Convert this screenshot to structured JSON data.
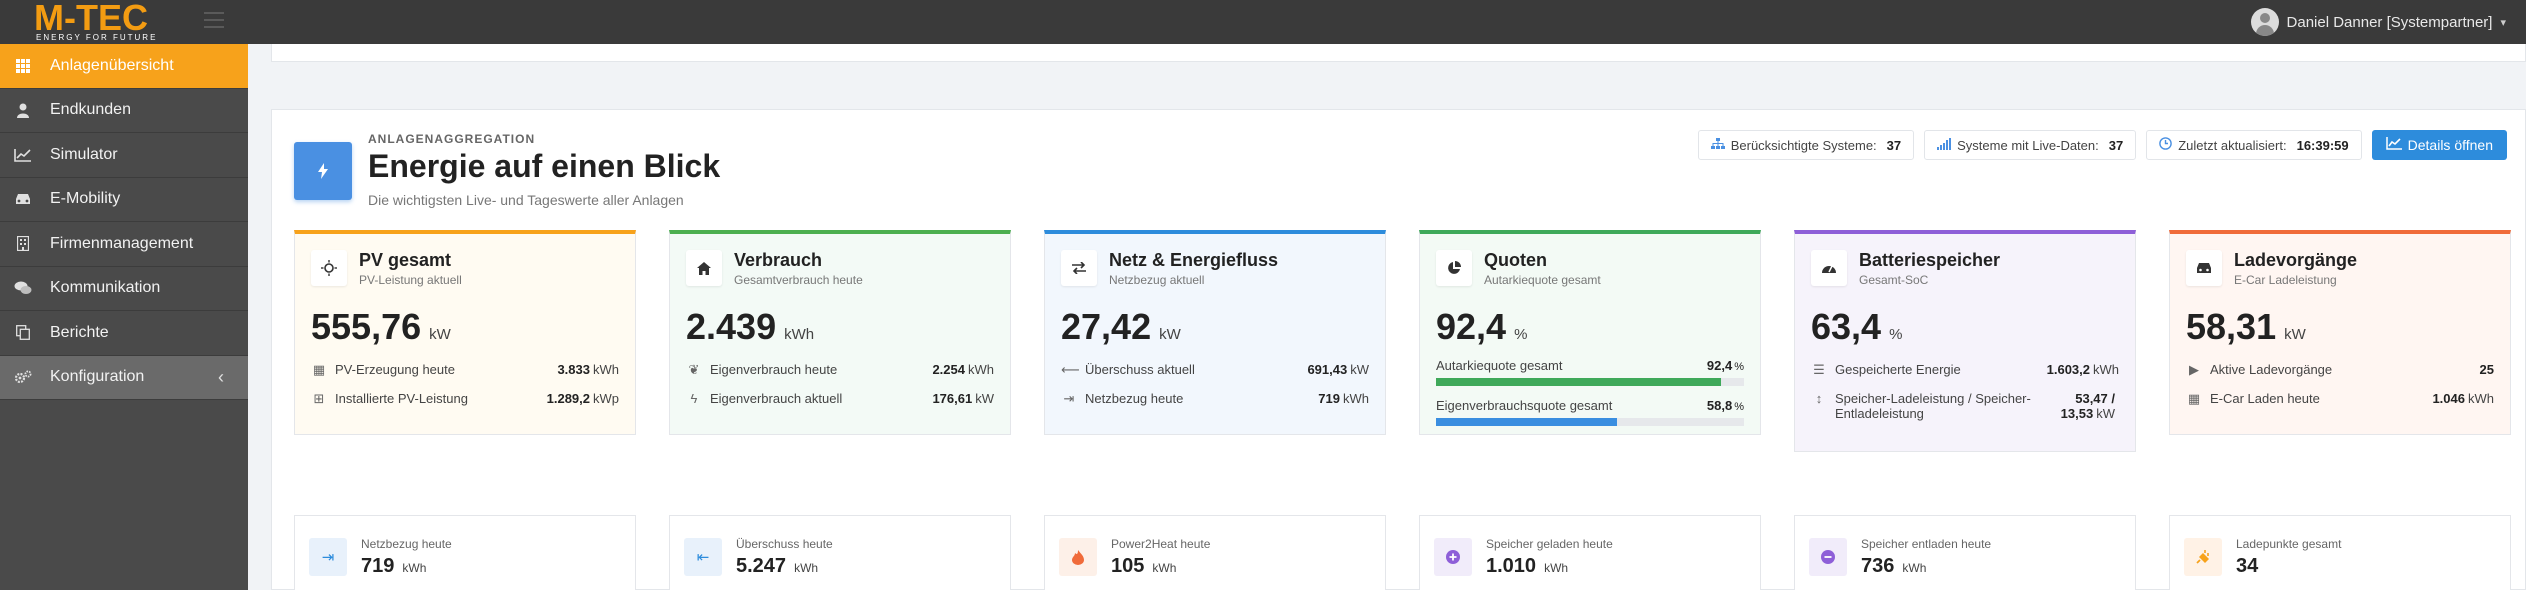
{
  "brand": {
    "name": "M-TEC",
    "tagline": "ENERGY FOR FUTURE"
  },
  "user": {
    "name": "Daniel Danner [Systempartner]"
  },
  "sidebar": {
    "items": [
      {
        "label": "Anlagenübersicht",
        "icon": "grid-icon"
      },
      {
        "label": "Endkunden",
        "icon": "user-icon"
      },
      {
        "label": "Simulator",
        "icon": "line-chart-icon"
      },
      {
        "label": "E-Mobility",
        "icon": "car-icon"
      },
      {
        "label": "Firmenmanagement",
        "icon": "building-icon"
      },
      {
        "label": "Kommunikation",
        "icon": "chat-icon"
      },
      {
        "label": "Berichte",
        "icon": "copy-icon"
      },
      {
        "label": "Konfiguration",
        "icon": "gears-icon"
      }
    ]
  },
  "header": {
    "overline": "ANLAGENAGGREGATION",
    "title": "Energie auf einen Blick",
    "subtitle": "Die wichtigsten Live- und Tageswerte aller Anlagen",
    "chips": [
      {
        "label": "Berücksichtigte Systeme:",
        "value": "37",
        "icon": "sitemap-icon"
      },
      {
        "label": "Systeme mit Live-Daten:",
        "value": "37",
        "icon": "signal-icon"
      },
      {
        "label": "Zuletzt aktualisiert:",
        "value": "16:39:59",
        "icon": "clock-icon"
      }
    ],
    "details_button": "Details öffnen"
  },
  "colors": {
    "accent": "#f7a21b",
    "pv": "#f7a21b",
    "verbrauch": "#4caf50",
    "netz": "#2d8cdc",
    "quoten": "#3fa95a",
    "batterie": "#8e5fd8",
    "laden": "#f06b3a",
    "bar_green": "#3fa95a",
    "bar_blue": "#3a8ee0"
  },
  "cards": {
    "pv": {
      "title": "PV gesamt",
      "subtitle": "PV-Leistung aktuell",
      "value": "555,76",
      "unit": "kW",
      "rows": [
        {
          "label": "PV-Erzeugung heute",
          "value": "3.833",
          "unit": "kWh"
        },
        {
          "label": "Installierte PV-Leistung",
          "value": "1.289,2",
          "unit": "kWp"
        }
      ]
    },
    "verbrauch": {
      "title": "Verbrauch",
      "subtitle": "Gesamtverbrauch heute",
      "value": "2.439",
      "unit": "kWh",
      "rows": [
        {
          "label": "Eigenverbrauch heute",
          "value": "2.254",
          "unit": "kWh"
        },
        {
          "label": "Eigenverbrauch aktuell",
          "value": "176,61",
          "unit": "kW"
        }
      ]
    },
    "netz": {
      "title": "Netz & Energiefluss",
      "subtitle": "Netzbezug aktuell",
      "value": "27,42",
      "unit": "kW",
      "rows": [
        {
          "label": "Überschuss aktuell",
          "value": "691,43",
          "unit": "kW"
        },
        {
          "label": "Netzbezug heute",
          "value": "719",
          "unit": "kWh"
        }
      ]
    },
    "quoten": {
      "title": "Quoten",
      "subtitle": "Autarkiequote gesamt",
      "value": "92,4",
      "unit": "%",
      "bars": [
        {
          "label": "Autarkiequote gesamt",
          "value": "92,4",
          "unit": "%",
          "fraction": 0.924
        },
        {
          "label": "Eigenverbrauchsquote gesamt",
          "value": "58,8",
          "unit": "%",
          "fraction": 0.588
        }
      ]
    },
    "batterie": {
      "title": "Batteriespeicher",
      "subtitle": "Gesamt-SoC",
      "value": "63,4",
      "unit": "%",
      "rows": [
        {
          "label": "Gespeicherte Energie",
          "value": "1.603,2",
          "unit": "kWh"
        },
        {
          "label": "Speicher-Ladeleistung / Speicher-Entladeleistung",
          "value": "53,47 / 13,53",
          "unit": "kW"
        }
      ]
    },
    "laden": {
      "title": "Ladevorgänge",
      "subtitle": "E-Car Ladeleistung",
      "value": "58,31",
      "unit": "kW",
      "rows": [
        {
          "label": "Aktive Ladevorgänge",
          "value": "25",
          "unit": ""
        },
        {
          "label": "E-Car Laden heute",
          "value": "1.046",
          "unit": "kWh"
        }
      ]
    }
  },
  "minis": [
    {
      "label": "Netzbezug heute",
      "value": "719",
      "unit": "kWh"
    },
    {
      "label": "Überschuss heute",
      "value": "5.247",
      "unit": "kWh"
    },
    {
      "label": "Power2Heat heute",
      "value": "105",
      "unit": "kWh"
    },
    {
      "label": "Speicher geladen heute",
      "value": "1.010",
      "unit": "kWh"
    },
    {
      "label": "Speicher entladen heute",
      "value": "736",
      "unit": "kWh"
    },
    {
      "label": "Ladepunkte gesamt",
      "value": "34",
      "unit": ""
    }
  ]
}
